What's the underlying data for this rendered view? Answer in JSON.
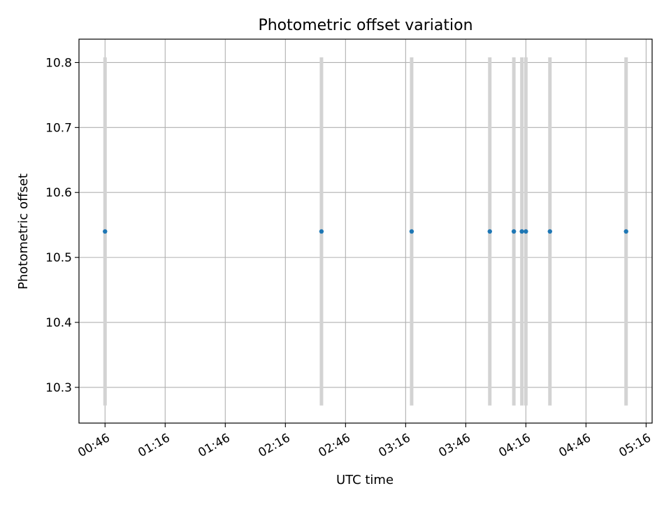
{
  "chart_data": {
    "type": "scatter",
    "title": "Photometric offset variation",
    "xlabel": "UTC time",
    "ylabel": "Photometric offset",
    "x_ticks": [
      "00:46",
      "01:16",
      "01:46",
      "02:16",
      "02:46",
      "03:16",
      "03:46",
      "04:16",
      "04:46",
      "05:16"
    ],
    "x_tick_minutes": [
      46,
      76,
      106,
      136,
      166,
      196,
      226,
      256,
      286,
      316
    ],
    "xlim": [
      "00:33",
      "05:19"
    ],
    "y_ticks": [
      "10.3",
      "10.4",
      "10.5",
      "10.6",
      "10.7",
      "10.8"
    ],
    "y_tick_values": [
      10.3,
      10.4,
      10.5,
      10.6,
      10.7,
      10.8
    ],
    "ylim": [
      10.245,
      10.836
    ],
    "grid": true,
    "series": [
      {
        "x": [
          "00:46",
          "02:34",
          "03:19",
          "03:58",
          "04:10",
          "04:14",
          "04:16",
          "04:28",
          "05:06"
        ],
        "x_minutes": [
          46,
          154,
          199,
          238,
          250,
          254,
          256,
          268,
          306
        ],
        "y": [
          10.54,
          10.54,
          10.54,
          10.54,
          10.54,
          10.54,
          10.54,
          10.54,
          10.54
        ],
        "yerr": [
          0.268,
          0.268,
          0.268,
          0.268,
          0.268,
          0.268,
          0.268,
          0.268,
          0.268
        ]
      }
    ],
    "colors": {
      "marker": "#1f77b4",
      "errorbar": "#d3d3d3",
      "grid": "#b0b0b0",
      "axes": "#000000"
    }
  }
}
